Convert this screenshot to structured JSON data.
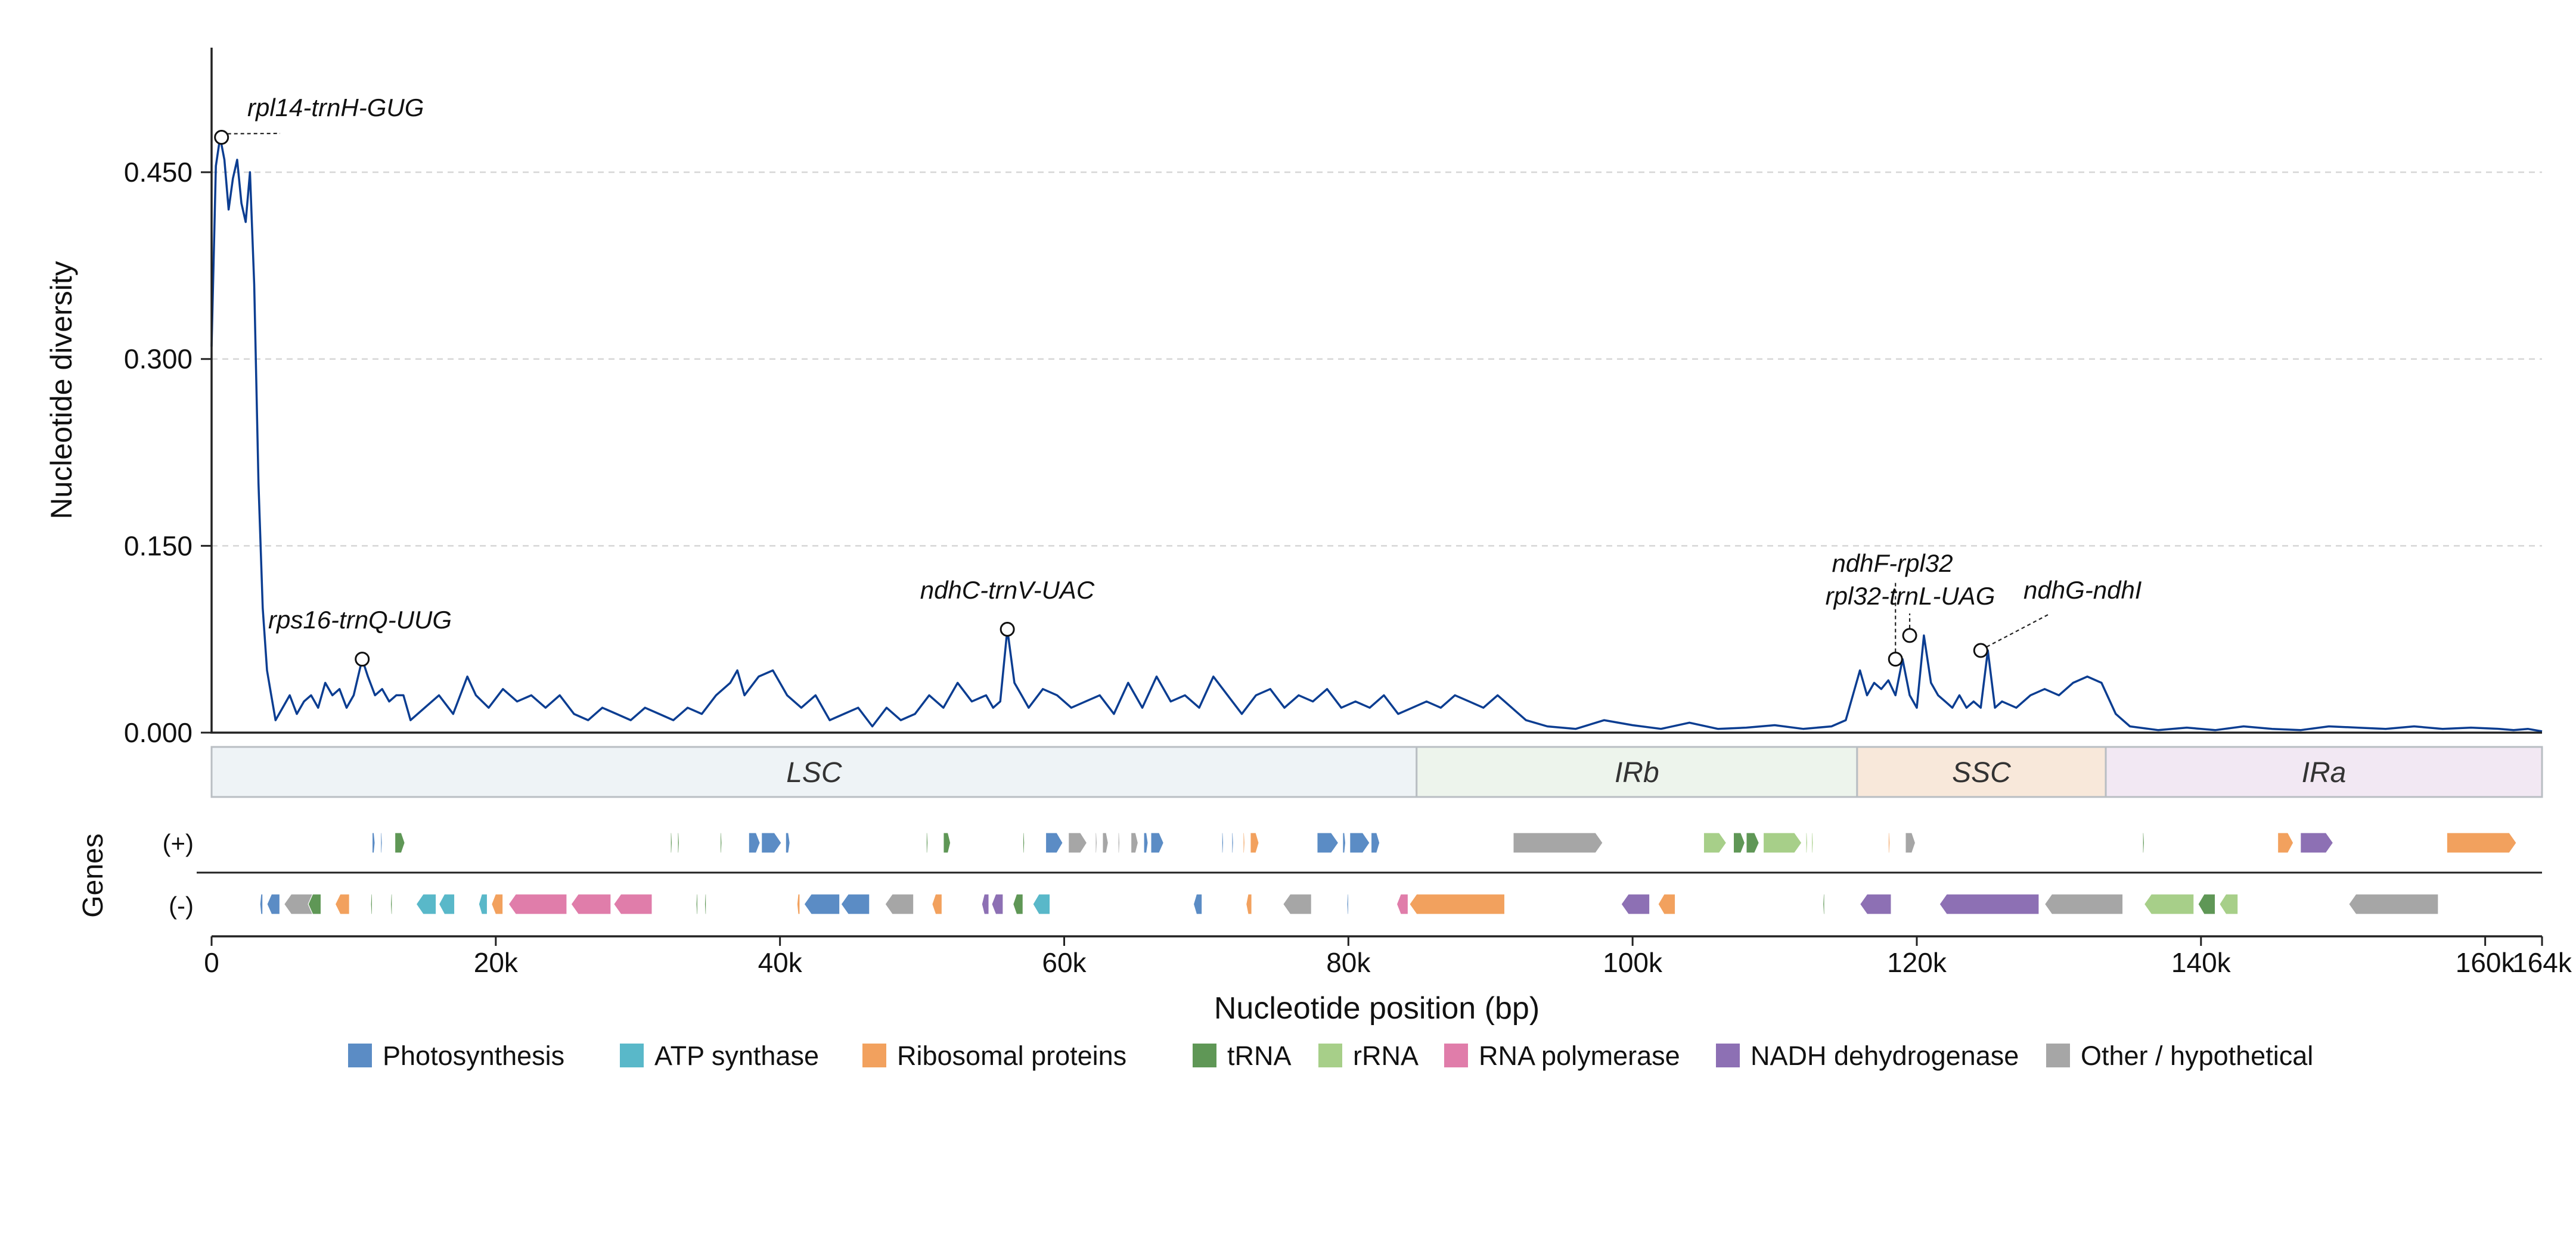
{
  "chart_data": {
    "type": "line",
    "ylabel": "Nucleotide diversity",
    "xlabel": "Nucleotide position (bp)",
    "genes_label": "Genes",
    "strand_labels": [
      "(+)",
      "(-)"
    ],
    "xlim": [
      0,
      164000
    ],
    "ylim": [
      0,
      0.55
    ],
    "yticks": [
      {
        "value": 0.0,
        "label": "0.000"
      },
      {
        "value": 0.15,
        "label": "0.150"
      },
      {
        "value": 0.3,
        "label": "0.300"
      },
      {
        "value": 0.45,
        "label": "0.450"
      }
    ],
    "xticks": [
      {
        "value": 0,
        "label": "0"
      },
      {
        "value": 20000,
        "label": "20k"
      },
      {
        "value": 40000,
        "label": "40k"
      },
      {
        "value": 60000,
        "label": "60k"
      },
      {
        "value": 80000,
        "label": "80k"
      },
      {
        "value": 100000,
        "label": "100k"
      },
      {
        "value": 120000,
        "label": "120k"
      },
      {
        "value": 140000,
        "label": "140k"
      },
      {
        "value": 160000,
        "label": "160k"
      },
      {
        "value": 164000,
        "label": "164k"
      }
    ],
    "grid": "horizontal dashed",
    "series": [
      {
        "color": "#0b3d91",
        "x": [
          0,
          300,
          600,
          900,
          1200,
          1500,
          1800,
          2100,
          2400,
          2700,
          3000,
          3300,
          3600,
          3900,
          4200,
          4500,
          5000,
          5500,
          6000,
          6500,
          7000,
          7500,
          8000,
          8500,
          9000,
          9500,
          10000,
          10600,
          11000,
          11500,
          12000,
          12500,
          13000,
          13500,
          14000,
          15000,
          16000,
          17000,
          18000,
          18600,
          19500,
          20500,
          21500,
          22500,
          23500,
          24500,
          25500,
          26500,
          27500,
          28500,
          29500,
          30500,
          31500,
          32500,
          33500,
          34500,
          35500,
          36500,
          37000,
          37500,
          38500,
          39500,
          40500,
          41500,
          42500,
          43500,
          44500,
          45500,
          46500,
          47500,
          48500,
          49500,
          50500,
          51500,
          52500,
          53500,
          54500,
          55000,
          55500,
          56000,
          56500,
          57000,
          57500,
          58500,
          59500,
          60500,
          61500,
          62500,
          63500,
          64500,
          65500,
          66500,
          67500,
          68500,
          69500,
          70500,
          71500,
          72500,
          73500,
          74500,
          75500,
          76500,
          77500,
          78500,
          79500,
          80500,
          81500,
          82500,
          83500,
          84500,
          85500,
          86500,
          87500,
          88500,
          89500,
          90500,
          91500,
          92500,
          94000,
          96000,
          98000,
          100000,
          102000,
          104000,
          106000,
          108000,
          110000,
          112000,
          114000,
          115000,
          115500,
          116000,
          116500,
          117000,
          117500,
          118000,
          118500,
          119000,
          119500,
          120000,
          120500,
          121000,
          121500,
          122000,
          122500,
          123000,
          123500,
          124000,
          124500,
          125000,
          125500,
          126000,
          127000,
          128000,
          129000,
          130000,
          131000,
          132000,
          133000,
          134000,
          135000,
          137000,
          139000,
          141000,
          143000,
          145000,
          147000,
          149000,
          151000,
          153000,
          155000,
          157000,
          159000,
          161000,
          162000,
          163000,
          164000
        ],
        "y": [
          0.31,
          0.455,
          0.478,
          0.46,
          0.42,
          0.445,
          0.46,
          0.425,
          0.41,
          0.45,
          0.36,
          0.2,
          0.1,
          0.05,
          0.03,
          0.01,
          0.02,
          0.03,
          0.015,
          0.025,
          0.03,
          0.02,
          0.04,
          0.03,
          0.035,
          0.02,
          0.03,
          0.059,
          0.045,
          0.03,
          0.035,
          0.025,
          0.03,
          0.03,
          0.01,
          0.02,
          0.03,
          0.015,
          0.045,
          0.03,
          0.02,
          0.035,
          0.025,
          0.03,
          0.02,
          0.03,
          0.015,
          0.01,
          0.02,
          0.015,
          0.01,
          0.02,
          0.015,
          0.01,
          0.02,
          0.015,
          0.03,
          0.04,
          0.05,
          0.03,
          0.045,
          0.05,
          0.03,
          0.02,
          0.03,
          0.01,
          0.015,
          0.02,
          0.005,
          0.02,
          0.01,
          0.015,
          0.03,
          0.02,
          0.04,
          0.025,
          0.03,
          0.02,
          0.025,
          0.083,
          0.04,
          0.03,
          0.02,
          0.035,
          0.03,
          0.02,
          0.025,
          0.03,
          0.015,
          0.04,
          0.02,
          0.045,
          0.025,
          0.03,
          0.02,
          0.045,
          0.03,
          0.015,
          0.03,
          0.035,
          0.02,
          0.03,
          0.025,
          0.035,
          0.02,
          0.025,
          0.02,
          0.03,
          0.015,
          0.02,
          0.025,
          0.02,
          0.03,
          0.025,
          0.02,
          0.03,
          0.02,
          0.01,
          0.005,
          0.003,
          0.01,
          0.006,
          0.003,
          0.008,
          0.003,
          0.004,
          0.006,
          0.003,
          0.005,
          0.01,
          0.03,
          0.05,
          0.03,
          0.04,
          0.035,
          0.042,
          0.03,
          0.059,
          0.03,
          0.02,
          0.078,
          0.04,
          0.03,
          0.025,
          0.02,
          0.03,
          0.02,
          0.025,
          0.02,
          0.066,
          0.02,
          0.025,
          0.02,
          0.03,
          0.035,
          0.03,
          0.04,
          0.045,
          0.04,
          0.015,
          0.005,
          0.002,
          0.004,
          0.002,
          0.005,
          0.003,
          0.002,
          0.005,
          0.004,
          0.003,
          0.005,
          0.003,
          0.004,
          0.003,
          0.002,
          0.003,
          0.001
        ]
      }
    ],
    "annotations": [
      {
        "text": "rpl14-trnH-GUG",
        "x": 700,
        "y": 0.478
      },
      {
        "text": "rps16-trnQ-UUG",
        "x": 10600,
        "y": 0.059
      },
      {
        "text": "ndhC-trnV-UAC",
        "x": 56000,
        "y": 0.083
      },
      {
        "text": "ndhF-rpl32",
        "x": 118500,
        "y": 0.059
      },
      {
        "text": "rpl32-trnL-UAG",
        "x": 119500,
        "y": 0.078
      },
      {
        "text": "ndhG-ndhI",
        "x": 124500,
        "y": 0.066
      }
    ],
    "regions": [
      {
        "label": "LSC",
        "start": 0,
        "end": 84800,
        "color": "#eef3f6"
      },
      {
        "label": "IRb",
        "start": 84800,
        "end": 115800,
        "color": "#edf4ec"
      },
      {
        "label": "SSC",
        "start": 115800,
        "end": 133300,
        "color": "#f8e8da"
      },
      {
        "label": "IRa",
        "start": 133300,
        "end": 164000,
        "color": "#f2e8f3"
      }
    ],
    "gene_categories": [
      {
        "key": "photo",
        "label": "Photosynthesis",
        "color": "#5b8cc5"
      },
      {
        "key": "atp",
        "label": "ATP synthase",
        "color": "#59b8c9"
      },
      {
        "key": "ribo",
        "label": "Ribosomal proteins",
        "color": "#f2a15e"
      },
      {
        "key": "trna",
        "label": "tRNA",
        "color": "#5f9756"
      },
      {
        "key": "rrna",
        "label": "rRNA",
        "color": "#a7cf89"
      },
      {
        "key": "rnapol",
        "label": "RNA polymerase",
        "color": "#e07daa"
      },
      {
        "key": "ndh",
        "label": "NADH dehydrogenase",
        "color": "#8d70b4"
      },
      {
        "key": "other",
        "label": "Other / hypothetical",
        "color": "#a6a6a6"
      }
    ],
    "genes": [
      {
        "strand": "+",
        "cat": "photo",
        "start": 11300,
        "end": 11500
      },
      {
        "strand": "+",
        "cat": "photo",
        "start": 11900,
        "end": 12000
      },
      {
        "strand": "+",
        "cat": "trna",
        "start": 12900,
        "end": 13600
      },
      {
        "strand": "+",
        "cat": "trna",
        "start": 32300,
        "end": 32400
      },
      {
        "strand": "+",
        "cat": "trna",
        "start": 32800,
        "end": 32900
      },
      {
        "strand": "+",
        "cat": "trna",
        "start": 35800,
        "end": 35900
      },
      {
        "strand": "+",
        "cat": "photo",
        "start": 37800,
        "end": 38600
      },
      {
        "strand": "+",
        "cat": "photo",
        "start": 38700,
        "end": 40100
      },
      {
        "strand": "+",
        "cat": "photo",
        "start": 40400,
        "end": 40700
      },
      {
        "strand": "+",
        "cat": "trna",
        "start": 50300,
        "end": 50400
      },
      {
        "strand": "+",
        "cat": "trna",
        "start": 51500,
        "end": 52000
      },
      {
        "strand": "+",
        "cat": "trna",
        "start": 57100,
        "end": 57200
      },
      {
        "strand": "+",
        "cat": "photo",
        "start": 58700,
        "end": 59900
      },
      {
        "strand": "+",
        "cat": "other",
        "start": 60300,
        "end": 61600
      },
      {
        "strand": "+",
        "cat": "other",
        "start": 62200,
        "end": 62300
      },
      {
        "strand": "+",
        "cat": "other",
        "start": 62700,
        "end": 63100
      },
      {
        "strand": "+",
        "cat": "other",
        "start": 63800,
        "end": 63900
      },
      {
        "strand": "+",
        "cat": "other",
        "start": 64700,
        "end": 65200
      },
      {
        "strand": "+",
        "cat": "photo",
        "start": 65600,
        "end": 65900
      },
      {
        "strand": "+",
        "cat": "photo",
        "start": 66100,
        "end": 67000
      },
      {
        "strand": "+",
        "cat": "photo",
        "start": 71100,
        "end": 71200
      },
      {
        "strand": "+",
        "cat": "photo",
        "start": 71800,
        "end": 71900
      },
      {
        "strand": "+",
        "cat": "ribo",
        "start": 72600,
        "end": 72700
      },
      {
        "strand": "+",
        "cat": "ribo",
        "start": 73100,
        "end": 73700
      },
      {
        "strand": "+",
        "cat": "photo",
        "start": 77800,
        "end": 79300
      },
      {
        "strand": "+",
        "cat": "photo",
        "start": 79600,
        "end": 79800
      },
      {
        "strand": "+",
        "cat": "photo",
        "start": 80100,
        "end": 81500
      },
      {
        "strand": "+",
        "cat": "photo",
        "start": 81600,
        "end": 82200
      },
      {
        "strand": "+",
        "cat": "other",
        "start": 91600,
        "end": 97900
      },
      {
        "strand": "+",
        "cat": "rrna",
        "start": 105000,
        "end": 106600
      },
      {
        "strand": "+",
        "cat": "trna",
        "start": 107100,
        "end": 107900
      },
      {
        "strand": "+",
        "cat": "trna",
        "start": 108000,
        "end": 108900
      },
      {
        "strand": "+",
        "cat": "rrna",
        "start": 109200,
        "end": 111900
      },
      {
        "strand": "+",
        "cat": "rrna",
        "start": 112200,
        "end": 112300
      },
      {
        "strand": "+",
        "cat": "rrna",
        "start": 112600,
        "end": 112700
      },
      {
        "strand": "+",
        "cat": "ribo",
        "start": 118000,
        "end": 118100
      },
      {
        "strand": "+",
        "cat": "other",
        "start": 119200,
        "end": 119900
      },
      {
        "strand": "+",
        "cat": "trna",
        "start": 135900,
        "end": 136000
      },
      {
        "strand": "+",
        "cat": "ribo",
        "start": 145400,
        "end": 146500
      },
      {
        "strand": "+",
        "cat": "ndh",
        "start": 147000,
        "end": 149300
      },
      {
        "strand": "+",
        "cat": "ribo",
        "start": 157300,
        "end": 162200
      },
      {
        "strand": "-",
        "cat": "photo",
        "start": 3400,
        "end": 3600
      },
      {
        "strand": "-",
        "cat": "photo",
        "start": 3900,
        "end": 4800
      },
      {
        "strand": "-",
        "cat": "other",
        "start": 5100,
        "end": 7500
      },
      {
        "strand": "-",
        "cat": "trna",
        "start": 6800,
        "end": 7700
      },
      {
        "strand": "-",
        "cat": "ribo",
        "start": 8700,
        "end": 9700
      },
      {
        "strand": "-",
        "cat": "trna",
        "start": 11200,
        "end": 11300
      },
      {
        "strand": "-",
        "cat": "trna",
        "start": 12600,
        "end": 12700
      },
      {
        "strand": "-",
        "cat": "atp",
        "start": 14400,
        "end": 15800
      },
      {
        "strand": "-",
        "cat": "atp",
        "start": 16000,
        "end": 17100
      },
      {
        "strand": "-",
        "cat": "atp",
        "start": 18800,
        "end": 19400
      },
      {
        "strand": "-",
        "cat": "ribo",
        "start": 19700,
        "end": 20500
      },
      {
        "strand": "-",
        "cat": "rnapol",
        "start": 20900,
        "end": 25000
      },
      {
        "strand": "-",
        "cat": "rnapol",
        "start": 25300,
        "end": 28100
      },
      {
        "strand": "-",
        "cat": "rnapol",
        "start": 28300,
        "end": 31000
      },
      {
        "strand": "-",
        "cat": "trna",
        "start": 34100,
        "end": 34200
      },
      {
        "strand": "-",
        "cat": "trna",
        "start": 34700,
        "end": 34800
      },
      {
        "strand": "-",
        "cat": "ribo",
        "start": 41200,
        "end": 41400
      },
      {
        "strand": "-",
        "cat": "photo",
        "start": 41700,
        "end": 44200
      },
      {
        "strand": "-",
        "cat": "photo",
        "start": 44300,
        "end": 46300
      },
      {
        "strand": "-",
        "cat": "other",
        "start": 47400,
        "end": 49400
      },
      {
        "strand": "-",
        "cat": "ribo",
        "start": 50700,
        "end": 51400
      },
      {
        "strand": "-",
        "cat": "ndh",
        "start": 54200,
        "end": 54700
      },
      {
        "strand": "-",
        "cat": "ndh",
        "start": 54900,
        "end": 55700
      },
      {
        "strand": "-",
        "cat": "trna",
        "start": 56400,
        "end": 57100
      },
      {
        "strand": "-",
        "cat": "atp",
        "start": 57800,
        "end": 59000
      },
      {
        "strand": "-",
        "cat": "photo",
        "start": 69100,
        "end": 69700
      },
      {
        "strand": "-",
        "cat": "ribo",
        "start": 72800,
        "end": 73200
      },
      {
        "strand": "-",
        "cat": "other",
        "start": 75400,
        "end": 77400
      },
      {
        "strand": "-",
        "cat": "photo",
        "start": 79900,
        "end": 80000
      },
      {
        "strand": "-",
        "cat": "rnapol",
        "start": 83400,
        "end": 84200
      },
      {
        "strand": "-",
        "cat": "ribo",
        "start": 84300,
        "end": 91000
      },
      {
        "strand": "-",
        "cat": "ndh",
        "start": 99200,
        "end": 101200
      },
      {
        "strand": "-",
        "cat": "ribo",
        "start": 101800,
        "end": 103000
      },
      {
        "strand": "-",
        "cat": "trna",
        "start": 113400,
        "end": 113500
      },
      {
        "strand": "-",
        "cat": "ndh",
        "start": 116000,
        "end": 118200
      },
      {
        "strand": "-",
        "cat": "ndh",
        "start": 121600,
        "end": 128600
      },
      {
        "strand": "-",
        "cat": "other",
        "start": 129000,
        "end": 134500
      },
      {
        "strand": "-",
        "cat": "rrna",
        "start": 136000,
        "end": 139500
      },
      {
        "strand": "-",
        "cat": "trna",
        "start": 139800,
        "end": 141000
      },
      {
        "strand": "-",
        "cat": "rrna",
        "start": 141300,
        "end": 142600
      },
      {
        "strand": "-",
        "cat": "other",
        "start": 150400,
        "end": 156700
      }
    ]
  }
}
